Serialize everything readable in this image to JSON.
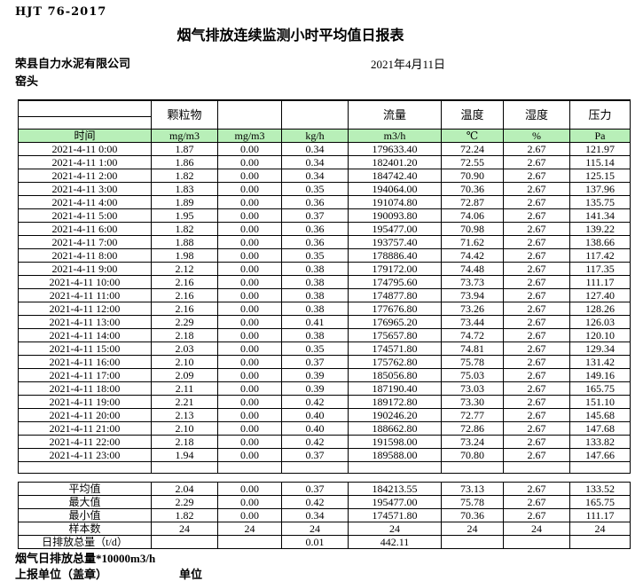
{
  "doc": {
    "standard": "HJT 76-2017",
    "title": "烟气排放连续监测小时平均值日报表",
    "company": "荣县自力水泥有限公司",
    "station": "窑头",
    "date": "2021年4月11日"
  },
  "table": {
    "time_label": "时间",
    "group_headers": [
      "",
      "颗粒物",
      "",
      "",
      "流量",
      "温度",
      "湿度",
      "压力"
    ],
    "units": [
      "mg/m3",
      "mg/m3",
      "kg/h",
      "m3/h",
      "℃",
      "%",
      "Pa"
    ],
    "rows": [
      {
        "time": "2021-4-11 0:00",
        "values": [
          "1.87",
          "0.00",
          "0.34",
          "179633.40",
          "72.24",
          "2.67",
          "121.97"
        ]
      },
      {
        "time": "2021-4-11 1:00",
        "values": [
          "1.86",
          "0.00",
          "0.34",
          "182401.20",
          "72.55",
          "2.67",
          "115.14"
        ]
      },
      {
        "time": "2021-4-11 2:00",
        "values": [
          "1.82",
          "0.00",
          "0.34",
          "184742.40",
          "70.90",
          "2.67",
          "125.15"
        ]
      },
      {
        "time": "2021-4-11 3:00",
        "values": [
          "1.83",
          "0.00",
          "0.35",
          "194064.00",
          "70.36",
          "2.67",
          "137.96"
        ]
      },
      {
        "time": "2021-4-11 4:00",
        "values": [
          "1.89",
          "0.00",
          "0.36",
          "191074.80",
          "72.87",
          "2.67",
          "135.75"
        ]
      },
      {
        "time": "2021-4-11 5:00",
        "values": [
          "1.95",
          "0.00",
          "0.37",
          "190093.80",
          "74.06",
          "2.67",
          "141.34"
        ]
      },
      {
        "time": "2021-4-11 6:00",
        "values": [
          "1.82",
          "0.00",
          "0.36",
          "195477.00",
          "70.98",
          "2.67",
          "139.22"
        ]
      },
      {
        "time": "2021-4-11 7:00",
        "values": [
          "1.88",
          "0.00",
          "0.36",
          "193757.40",
          "71.62",
          "2.67",
          "138.66"
        ]
      },
      {
        "time": "2021-4-11 8:00",
        "values": [
          "1.98",
          "0.00",
          "0.35",
          "178886.40",
          "74.42",
          "2.67",
          "117.42"
        ]
      },
      {
        "time": "2021-4-11 9:00",
        "values": [
          "2.12",
          "0.00",
          "0.38",
          "179172.00",
          "74.48",
          "2.67",
          "117.35"
        ]
      },
      {
        "time": "2021-4-11 10:00",
        "values": [
          "2.16",
          "0.00",
          "0.38",
          "174795.60",
          "73.73",
          "2.67",
          "111.17"
        ]
      },
      {
        "time": "2021-4-11 11:00",
        "values": [
          "2.16",
          "0.00",
          "0.38",
          "174877.80",
          "73.94",
          "2.67",
          "127.40"
        ]
      },
      {
        "time": "2021-4-11 12:00",
        "values": [
          "2.16",
          "0.00",
          "0.38",
          "177676.80",
          "73.26",
          "2.67",
          "128.26"
        ]
      },
      {
        "time": "2021-4-11 13:00",
        "values": [
          "2.29",
          "0.00",
          "0.41",
          "176965.20",
          "73.44",
          "2.67",
          "126.03"
        ]
      },
      {
        "time": "2021-4-11 14:00",
        "values": [
          "2.18",
          "0.00",
          "0.38",
          "175657.80",
          "74.72",
          "2.67",
          "120.10"
        ]
      },
      {
        "time": "2021-4-11 15:00",
        "values": [
          "2.03",
          "0.00",
          "0.35",
          "174571.80",
          "74.81",
          "2.67",
          "129.34"
        ]
      },
      {
        "time": "2021-4-11 16:00",
        "values": [
          "2.10",
          "0.00",
          "0.37",
          "175762.80",
          "75.78",
          "2.67",
          "131.42"
        ]
      },
      {
        "time": "2021-4-11 17:00",
        "values": [
          "2.09",
          "0.00",
          "0.39",
          "185056.80",
          "75.03",
          "2.67",
          "149.16"
        ]
      },
      {
        "time": "2021-4-11 18:00",
        "values": [
          "2.11",
          "0.00",
          "0.39",
          "187190.40",
          "73.03",
          "2.67",
          "165.75"
        ]
      },
      {
        "time": "2021-4-11 19:00",
        "values": [
          "2.21",
          "0.00",
          "0.42",
          "189172.80",
          "73.30",
          "2.67",
          "151.10"
        ]
      },
      {
        "time": "2021-4-11 20:00",
        "values": [
          "2.13",
          "0.00",
          "0.40",
          "190246.20",
          "72.77",
          "2.67",
          "145.68"
        ]
      },
      {
        "time": "2021-4-11 21:00",
        "values": [
          "2.10",
          "0.00",
          "0.40",
          "188662.80",
          "72.86",
          "2.67",
          "147.68"
        ]
      },
      {
        "time": "2021-4-11 22:00",
        "values": [
          "2.18",
          "0.00",
          "0.42",
          "191598.00",
          "73.24",
          "2.67",
          "133.82"
        ]
      },
      {
        "time": "2021-4-11 23:00",
        "values": [
          "1.94",
          "0.00",
          "0.37",
          "189588.00",
          "70.80",
          "2.67",
          "147.66"
        ]
      }
    ],
    "summary": [
      {
        "label": "平均值",
        "values": [
          "2.04",
          "0.00",
          "0.37",
          "184213.55",
          "73.13",
          "2.67",
          "133.52"
        ]
      },
      {
        "label": "最大值",
        "values": [
          "2.29",
          "0.00",
          "0.42",
          "195477.00",
          "75.78",
          "2.67",
          "165.75"
        ]
      },
      {
        "label": "最小值",
        "values": [
          "1.82",
          "0.00",
          "0.34",
          "174571.80",
          "70.36",
          "2.67",
          "111.17"
        ]
      },
      {
        "label": "样本数",
        "values": [
          "24",
          "24",
          "24",
          "24",
          "24",
          "24",
          "24"
        ]
      },
      {
        "label": "日排放总量（t/d）",
        "values": [
          "",
          "",
          "0.01",
          "442.11",
          "",
          "",
          ""
        ]
      }
    ]
  },
  "footer": {
    "note": "烟气日排放总量*10000m3/h",
    "report_unit_label": "上报单位（盖章）",
    "unit_label": "单位"
  },
  "colors": {
    "header_green": "#b8efb8",
    "border": "#000000"
  }
}
